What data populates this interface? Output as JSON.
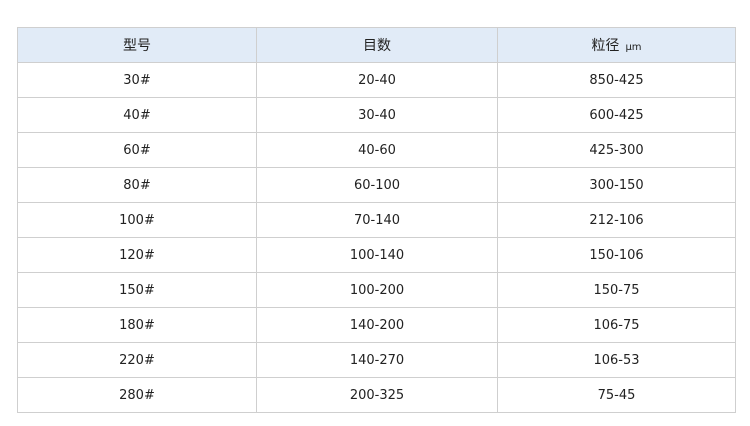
{
  "table": {
    "headers": [
      "型号",
      "目数",
      "粒径"
    ],
    "unit": "μm",
    "rows": [
      [
        "30#",
        "20-40",
        "850-425"
      ],
      [
        "40#",
        "30-40",
        "600-425"
      ],
      [
        "60#",
        "40-60",
        "425-300"
      ],
      [
        "80#",
        "60-100",
        "300-150"
      ],
      [
        "100#",
        "70-140",
        "212-106"
      ],
      [
        "120#",
        "100-140",
        "150-106"
      ],
      [
        "150#",
        "100-200",
        "150-75"
      ],
      [
        "180#",
        "140-200",
        "106-75"
      ],
      [
        "220#",
        "140-270",
        "106-53"
      ],
      [
        "280#",
        "200-325",
        "75-45"
      ]
    ]
  },
  "colors": {
    "header_bg": "#e1ebf7",
    "border": "#cfcfcf"
  }
}
